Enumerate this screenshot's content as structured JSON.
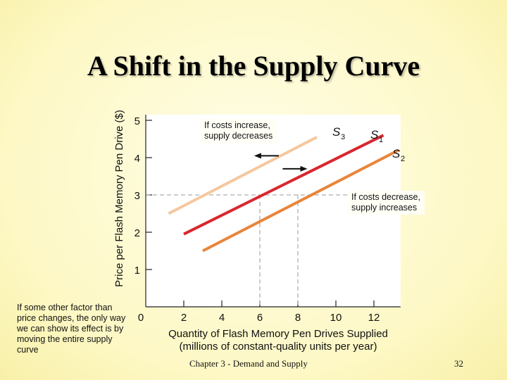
{
  "slide": {
    "title": "A Shift in the Supply Curve",
    "footer": "Chapter 3 - Demand and Supply",
    "page_number": "32",
    "left_note": "If some other factor than price changes, the only way we can show its effect is by moving the entire supply curve"
  },
  "chart_data": {
    "type": "line",
    "xlabel_line1": "Quantity of Flash Memory Pen Drives Supplied",
    "xlabel_line2": "(millions of constant-quality units per year)",
    "ylabel": "Price per Flash Memory Pen Drive ($)",
    "xlim": [
      0,
      13.4
    ],
    "ylim": [
      0,
      5
    ],
    "x_ticks": [
      2,
      4,
      6,
      8,
      10,
      12
    ],
    "y_ticks": [
      1,
      2,
      3,
      4,
      5
    ],
    "origin_label": "0",
    "series": [
      {
        "name": "S3",
        "letter": "S",
        "sub": "3",
        "color": "#f5c79e",
        "points": [
          [
            1.2,
            2.5
          ],
          [
            9.0,
            4.55
          ]
        ]
      },
      {
        "name": "S1",
        "letter": "S",
        "sub": "1",
        "color": "#d9262e",
        "points": [
          [
            2.0,
            1.95
          ],
          [
            12.5,
            4.6
          ]
        ]
      },
      {
        "name": "S2",
        "letter": "S",
        "sub": "2",
        "color": "#e8853a",
        "points": [
          [
            3.0,
            1.5
          ],
          [
            13.3,
            4.2
          ]
        ]
      }
    ],
    "reference": {
      "x": 6,
      "y": 3
    },
    "arrows": [
      {
        "direction": "left",
        "y": 4.05,
        "from_x": 7.0,
        "to_x": 5.7
      },
      {
        "direction": "right",
        "y": 3.7,
        "from_x": 7.2,
        "to_x": 8.5
      }
    ],
    "annotations": {
      "decrease": "If costs increase,\nsupply decreases",
      "increase": "If costs decrease,\nsupply increases"
    }
  }
}
